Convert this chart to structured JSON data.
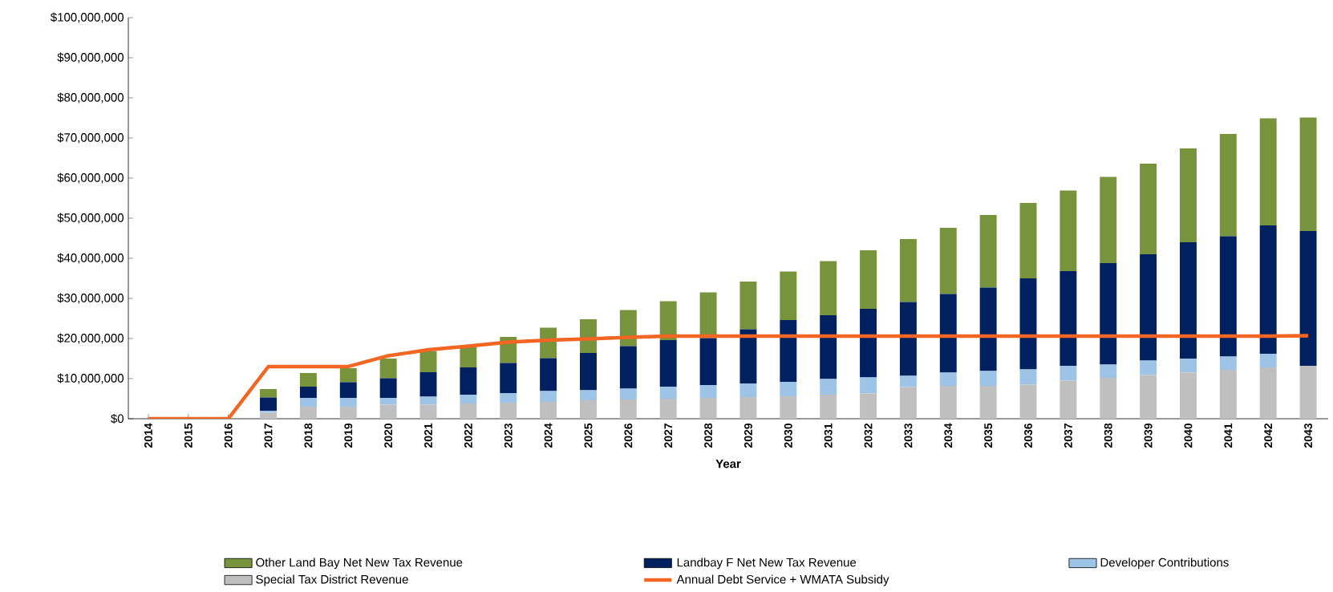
{
  "chart_data": {
    "type": "bar",
    "stacked": true,
    "xlabel": "Year",
    "legend": "bottom",
    "categories": [
      "2014",
      "2015",
      "2016",
      "2017",
      "2018",
      "2019",
      "2020",
      "2021",
      "2022",
      "2023",
      "2024",
      "2025",
      "2026",
      "2027",
      "2028",
      "2029",
      "2030",
      "2031",
      "2032",
      "2033",
      "2034",
      "2035",
      "2036",
      "2037",
      "2038",
      "2039",
      "2040",
      "2041",
      "2042",
      "2043"
    ],
    "ylim": [
      0,
      100000000
    ],
    "yticks": [
      {
        "value": 0,
        "label": "$0"
      },
      {
        "value": 10000000,
        "label": "$10,000,000"
      },
      {
        "value": 20000000,
        "label": "$20,000,000"
      },
      {
        "value": 30000000,
        "label": "$30,000,000"
      },
      {
        "value": 40000000,
        "label": "$40,000,000"
      },
      {
        "value": 50000000,
        "label": "$50,000,000"
      },
      {
        "value": 60000000,
        "label": "$60,000,000"
      },
      {
        "value": 70000000,
        "label": "$70,000,000"
      },
      {
        "value": 80000000,
        "label": "$80,000,000"
      },
      {
        "value": 90000000,
        "label": "$90,000,000"
      },
      {
        "value": 100000000,
        "label": "$100,000,000"
      }
    ],
    "series": [
      {
        "name": "Special Tax District Revenue",
        "color": "#bfbfbf",
        "values": [
          0,
          0,
          0,
          1500000,
          3000000,
          3000000,
          3500000,
          3500000,
          3800000,
          4000000,
          4200000,
          4600000,
          4800000,
          5000000,
          5200000,
          5400000,
          5600000,
          6000000,
          6300000,
          7900000,
          8200000,
          8200000,
          8500000,
          9500000,
          10200000,
          10900000,
          11500000,
          12200000,
          12800000,
          13200000
        ]
      },
      {
        "name": "Developer Contributions",
        "color": "#9dc3e6",
        "values": [
          0,
          0,
          0,
          500000,
          2200000,
          2200000,
          1700000,
          2000000,
          2200000,
          2400000,
          2700000,
          2500000,
          2700000,
          3000000,
          3200000,
          3400000,
          3600000,
          3900000,
          4000000,
          2800000,
          3300000,
          3700000,
          3800000,
          3700000,
          3300000,
          3600000,
          3500000,
          3300000,
          3400000,
          0
        ]
      },
      {
        "name": "Landbay F Net New Tax Revenue",
        "color": "#002060",
        "values": [
          0,
          0,
          0,
          3300000,
          2800000,
          3900000,
          4900000,
          6100000,
          6800000,
          7500000,
          8200000,
          9300000,
          10600000,
          11600000,
          11700000,
          13500000,
          15400000,
          15900000,
          17100000,
          18400000,
          19600000,
          20800000,
          22700000,
          23600000,
          25300000,
          26500000,
          29000000,
          30000000,
          32000000,
          33600000
        ]
      },
      {
        "name": "Other Land Bay Net New Tax Revenue",
        "color": "#77933c",
        "values": [
          0,
          0,
          0,
          2100000,
          3400000,
          3500000,
          4900000,
          5300000,
          5100000,
          6500000,
          7600000,
          8400000,
          9000000,
          9700000,
          11400000,
          11900000,
          12100000,
          13500000,
          14600000,
          15700000,
          16500000,
          18100000,
          18800000,
          20100000,
          21500000,
          22600000,
          23400000,
          25500000,
          26700000,
          28300000
        ]
      },
      {
        "name": "Annual Debt Service + WMATA Subsidy",
        "type": "line",
        "color": "#f26522",
        "values": [
          0,
          0,
          0,
          13000000,
          13000000,
          13000000,
          15700000,
          17200000,
          18100000,
          19100000,
          19600000,
          19900000,
          20300000,
          20600000,
          20600000,
          20600000,
          20600000,
          20600000,
          20600000,
          20600000,
          20600000,
          20600000,
          20600000,
          20600000,
          20600000,
          20600000,
          20600000,
          20600000,
          20600000,
          20700000
        ]
      }
    ]
  }
}
